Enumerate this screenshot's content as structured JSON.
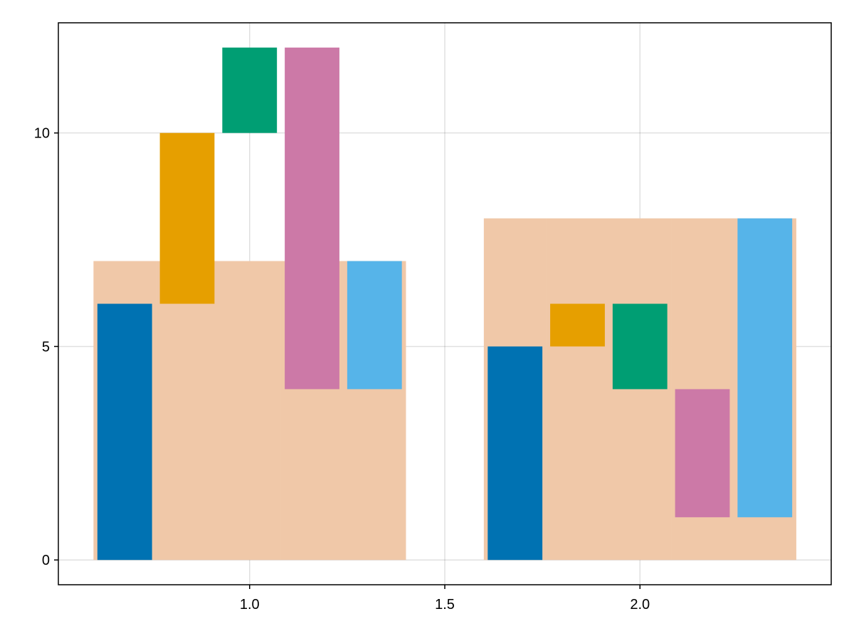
{
  "chart_data": {
    "type": "bar",
    "subtype": "waterfall",
    "title": "",
    "xlabel": "",
    "ylabel": "",
    "xlim": [
      0.51,
      2.49
    ],
    "ylim": [
      -0.58,
      12.58
    ],
    "xticks": [
      1.0,
      1.5,
      2.0
    ],
    "xtick_labels": [
      "1.0",
      "1.5",
      "2.0"
    ],
    "yticks": [
      0,
      5,
      10
    ],
    "ytick_labels": [
      "0",
      "5",
      "10"
    ],
    "grid": true,
    "dodge_colors": [
      "#0072b2",
      "#e69f00",
      "#009e73",
      "#cc79a7",
      "#56b4e9"
    ],
    "final_color": "#f0c8a8",
    "groups": [
      {
        "x": 1,
        "steps": [
          6,
          4,
          2,
          -8,
          3
        ],
        "final": 7
      },
      {
        "x": 2,
        "steps": [
          5,
          1,
          -2,
          -3,
          7
        ],
        "final": 8
      }
    ]
  }
}
